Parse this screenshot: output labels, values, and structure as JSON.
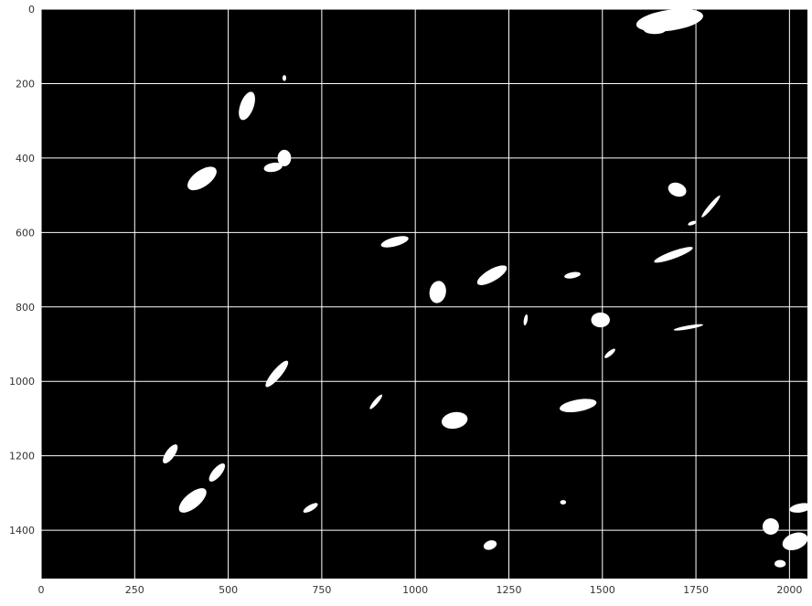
{
  "chart_data": {
    "type": "heatmap",
    "description_kind": "binary mask image",
    "colors": {
      "background": "#000000",
      "foreground": "#ffffff",
      "grid": "#ffffff"
    },
    "grid": true,
    "xlim": [
      0,
      2048
    ],
    "ylim": [
      1530,
      0
    ],
    "x_ticks": [
      0,
      250,
      500,
      750,
      1000,
      1250,
      1500,
      1750,
      2000
    ],
    "y_ticks": [
      0,
      200,
      400,
      600,
      800,
      1000,
      1200,
      1400
    ],
    "x_tick_labels": [
      "0",
      "250",
      "500",
      "750",
      "1000",
      "1250",
      "1500",
      "1750",
      "2000"
    ],
    "y_tick_labels": [
      "0",
      "200",
      "400",
      "600",
      "800",
      "1000",
      "1200",
      "1400"
    ],
    "blobs": [
      {
        "x": 1680,
        "y": 30,
        "rx": 90,
        "ry": 28,
        "rot": -8
      },
      {
        "x": 1640,
        "y": 55,
        "rx": 30,
        "ry": 12,
        "rot": 0
      },
      {
        "x": 550,
        "y": 260,
        "rx": 18,
        "ry": 40,
        "rot": 20
      },
      {
        "x": 430,
        "y": 455,
        "rx": 45,
        "ry": 22,
        "rot": -35
      },
      {
        "x": 650,
        "y": 400,
        "rx": 18,
        "ry": 22,
        "rot": 0
      },
      {
        "x": 620,
        "y": 425,
        "rx": 25,
        "ry": 12,
        "rot": -10
      },
      {
        "x": 945,
        "y": 625,
        "rx": 38,
        "ry": 12,
        "rot": -15
      },
      {
        "x": 1060,
        "y": 760,
        "rx": 22,
        "ry": 30,
        "rot": 10
      },
      {
        "x": 1205,
        "y": 715,
        "rx": 45,
        "ry": 16,
        "rot": -30
      },
      {
        "x": 1420,
        "y": 715,
        "rx": 22,
        "ry": 8,
        "rot": -10
      },
      {
        "x": 1790,
        "y": 530,
        "rx": 38,
        "ry": 6,
        "rot": -50
      },
      {
        "x": 1740,
        "y": 575,
        "rx": 12,
        "ry": 5,
        "rot": -20
      },
      {
        "x": 1690,
        "y": 660,
        "rx": 55,
        "ry": 10,
        "rot": -20
      },
      {
        "x": 1700,
        "y": 485,
        "rx": 25,
        "ry": 18,
        "rot": 20
      },
      {
        "x": 1495,
        "y": 835,
        "rx": 25,
        "ry": 20,
        "rot": 0
      },
      {
        "x": 1730,
        "y": 855,
        "rx": 40,
        "ry": 5,
        "rot": -10
      },
      {
        "x": 1520,
        "y": 925,
        "rx": 18,
        "ry": 6,
        "rot": -40
      },
      {
        "x": 630,
        "y": 980,
        "rx": 45,
        "ry": 12,
        "rot": -50
      },
      {
        "x": 895,
        "y": 1055,
        "rx": 25,
        "ry": 6,
        "rot": -50
      },
      {
        "x": 1105,
        "y": 1105,
        "rx": 35,
        "ry": 22,
        "rot": -10
      },
      {
        "x": 1435,
        "y": 1065,
        "rx": 50,
        "ry": 16,
        "rot": -10
      },
      {
        "x": 345,
        "y": 1195,
        "rx": 30,
        "ry": 12,
        "rot": -55
      },
      {
        "x": 405,
        "y": 1320,
        "rx": 45,
        "ry": 20,
        "rot": -40
      },
      {
        "x": 470,
        "y": 1245,
        "rx": 30,
        "ry": 12,
        "rot": -50
      },
      {
        "x": 720,
        "y": 1340,
        "rx": 22,
        "ry": 8,
        "rot": -30
      },
      {
        "x": 1200,
        "y": 1440,
        "rx": 18,
        "ry": 12,
        "rot": -20
      },
      {
        "x": 1395,
        "y": 1325,
        "rx": 8,
        "ry": 6,
        "rot": 0
      },
      {
        "x": 1950,
        "y": 1390,
        "rx": 22,
        "ry": 22,
        "rot": -60
      },
      {
        "x": 2015,
        "y": 1430,
        "rx": 35,
        "ry": 22,
        "rot": -20
      },
      {
        "x": 2030,
        "y": 1340,
        "rx": 30,
        "ry": 12,
        "rot": -10
      },
      {
        "x": 1975,
        "y": 1490,
        "rx": 15,
        "ry": 10,
        "rot": 0
      },
      {
        "x": 650,
        "y": 185,
        "rx": 5,
        "ry": 8,
        "rot": 0
      },
      {
        "x": 1295,
        "y": 835,
        "rx": 5,
        "ry": 15,
        "rot": 10
      }
    ]
  }
}
